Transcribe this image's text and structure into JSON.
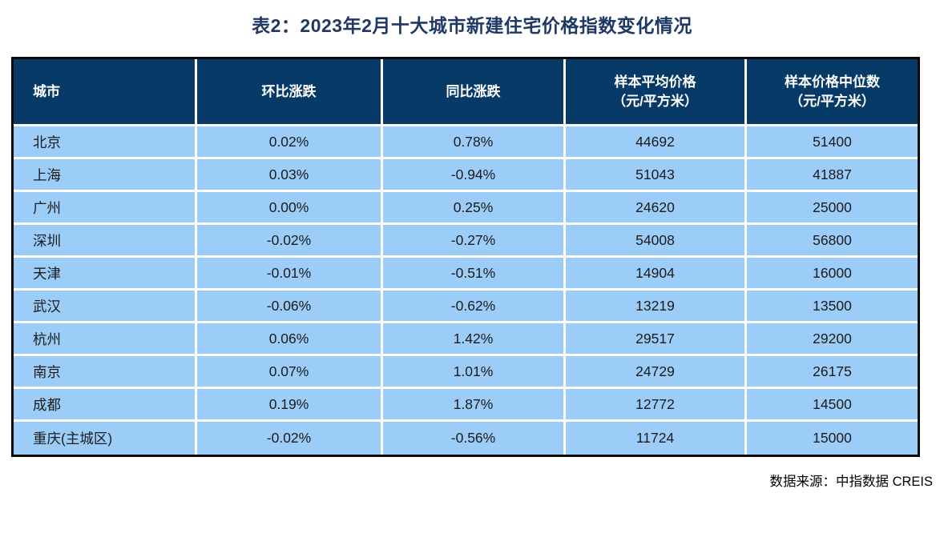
{
  "title": "表2：2023年2月十大城市新建住宅价格指数变化情况",
  "source_note": "数据来源：中指数据 CREIS",
  "colors": {
    "title_color": "#1F3864",
    "header_background": "#083A67",
    "header_text": "#FFFFFF",
    "row_background": "#9CCDF8",
    "body_text": "#1B1B1B",
    "outer_border": "#0A0A0A",
    "cell_separator": "#FFFFFF",
    "page_background": "#FFFFFF"
  },
  "chart_data": {
    "type": "table",
    "title": "表2：2023年2月十大城市新建住宅价格指数变化情况",
    "columns": [
      "城市",
      "环比涨跌",
      "同比涨跌",
      "样本平均价格\n（元/平方米）",
      "样本价格中位数\n（元/平方米）"
    ],
    "rows": [
      {
        "city": "北京",
        "mom_change": "0.02%",
        "yoy_change": "0.78%",
        "sample_avg_price": "44692",
        "sample_median_price": "51400"
      },
      {
        "city": "上海",
        "mom_change": "0.03%",
        "yoy_change": "-0.94%",
        "sample_avg_price": "51043",
        "sample_median_price": "41887"
      },
      {
        "city": "广州",
        "mom_change": "0.00%",
        "yoy_change": "0.25%",
        "sample_avg_price": "24620",
        "sample_median_price": "25000"
      },
      {
        "city": "深圳",
        "mom_change": "-0.02%",
        "yoy_change": "-0.27%",
        "sample_avg_price": "54008",
        "sample_median_price": "56800"
      },
      {
        "city": "天津",
        "mom_change": "-0.01%",
        "yoy_change": "-0.51%",
        "sample_avg_price": "14904",
        "sample_median_price": "16000"
      },
      {
        "city": "武汉",
        "mom_change": "-0.06%",
        "yoy_change": "-0.62%",
        "sample_avg_price": "13219",
        "sample_median_price": "13500"
      },
      {
        "city": "杭州",
        "mom_change": "0.06%",
        "yoy_change": "1.42%",
        "sample_avg_price": "29517",
        "sample_median_price": "29200"
      },
      {
        "city": "南京",
        "mom_change": "0.07%",
        "yoy_change": "1.01%",
        "sample_avg_price": "24729",
        "sample_median_price": "26175"
      },
      {
        "city": "成都",
        "mom_change": "0.19%",
        "yoy_change": "1.87%",
        "sample_avg_price": "12772",
        "sample_median_price": "14500"
      },
      {
        "city": "重庆(主城区)",
        "mom_change": "-0.02%",
        "yoy_change": "-0.56%",
        "sample_avg_price": "11724",
        "sample_median_price": "15000"
      }
    ]
  }
}
